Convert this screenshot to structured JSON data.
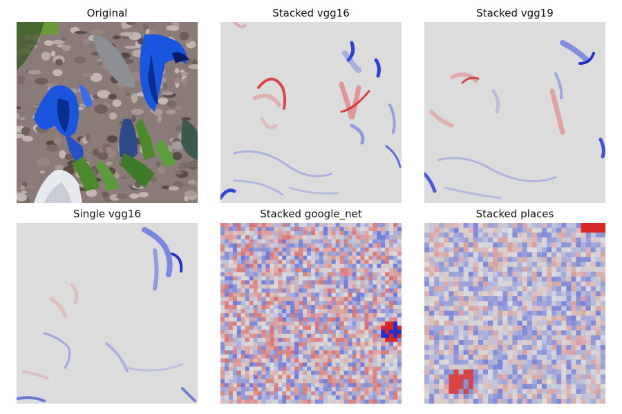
{
  "figure": {
    "panels": [
      {
        "id": "original",
        "title": "Original",
        "kind": "photo"
      },
      {
        "id": "stacked-vgg16",
        "title": "Stacked vgg16",
        "kind": "heatmap-smooth"
      },
      {
        "id": "stacked-vgg19",
        "title": "Stacked vgg19",
        "kind": "heatmap-smooth"
      },
      {
        "id": "single-vgg16",
        "title": "Single vgg16",
        "kind": "heatmap-smooth"
      },
      {
        "id": "stacked-google-net",
        "title": "Stacked google_net",
        "kind": "heatmap-fine-grid"
      },
      {
        "id": "stacked-places",
        "title": "Stacked places",
        "kind": "heatmap-coarse-grid"
      }
    ],
    "colors": {
      "neutral": "#dcdcdc",
      "positive": "#d62728",
      "negative": "#1f3fd6"
    }
  }
}
